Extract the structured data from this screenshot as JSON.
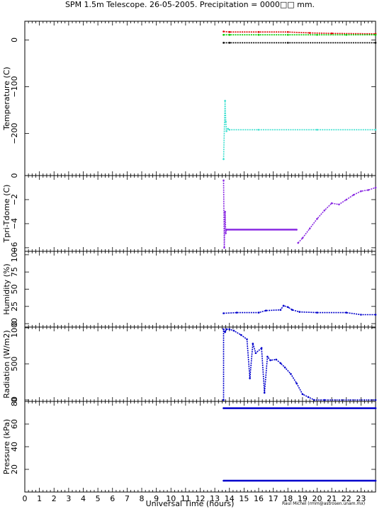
{
  "title": "SPM 1.5m Telescope. 26-05-2005. Precipitation = 0000□□ mm.",
  "xlabel": "Universal Time (hours)",
  "credit": "Raul Michel (rmm@astrosen.unam.mx)",
  "x_ticks": [
    "0",
    "1",
    "2",
    "3",
    "4",
    "5",
    "6",
    "7",
    "8",
    "9",
    "10",
    "11",
    "12",
    "13",
    "14",
    "15",
    "16",
    "17",
    "18",
    "19",
    "20",
    "21",
    "22",
    "23"
  ],
  "colors": {
    "red": "#dd0000",
    "green": "#00cc00",
    "black": "#000000",
    "gray": "#555555",
    "cyan": "#40e0d0",
    "purple": "#8a2be2",
    "blue": "#0000cc"
  },
  "chart_data": [
    {
      "type": "scatter",
      "ylabel": "Temperature (C)",
      "xlim": [
        0,
        24
      ],
      "ylim": [
        -290,
        40
      ],
      "y_ticks": [
        "0",
        "−100",
        "−200"
      ],
      "series": [
        {
          "color": "red",
          "segments": [
            {
              "x": [
                13.6,
                14.0,
                16.0,
                18.0,
                19.5,
                21.0,
                24.0
              ],
              "y": [
                18,
                17,
                17,
                17,
                15,
                14,
                13
              ]
            }
          ]
        },
        {
          "color": "green",
          "segments": [
            {
              "x": [
                13.6,
                14.0,
                16.0,
                18.0,
                20.0,
                22.0,
                24.0
              ],
              "y": [
                11,
                11,
                11,
                11,
                11,
                11,
                11
              ]
            }
          ]
        },
        {
          "color": "black",
          "segments": [
            {
              "x": [
                13.6,
                14.0,
                18.0,
                24.0
              ],
              "y": [
                -6,
                -6,
                -6,
                -6
              ]
            }
          ]
        },
        {
          "color": "cyan",
          "segments": [
            {
              "x": [
                13.6,
                13.7,
                13.75,
                13.8,
                13.9,
                14.0,
                16.0,
                20.0,
                24.0
              ],
              "y": [
                -255,
                -130,
                -175,
                -195,
                -190,
                -192,
                -192,
                -192,
                -192
              ]
            }
          ]
        }
      ]
    },
    {
      "type": "scatter",
      "ylabel": "Tpri-Tdome (C)",
      "xlim": [
        0,
        24
      ],
      "ylim": [
        -6.3,
        0
      ],
      "y_ticks": [
        "0",
        "−2",
        "−4",
        "−6"
      ],
      "series": [
        {
          "color": "purple",
          "segments": [
            {
              "x": [
                13.6,
                13.65,
                13.7,
                13.75,
                13.8
              ],
              "y": [
                -0.4,
                -6.0,
                -3.0,
                -4.8,
                -4.5
              ]
            },
            {
              "x": [
                13.8,
                18.6
              ],
              "y": [
                -4.5,
                -4.5
              ]
            },
            {
              "x": [
                18.7,
                19.0,
                19.5,
                20.0,
                20.5,
                21.0,
                21.5,
                22.0,
                22.5,
                23.0,
                23.5,
                24.0
              ],
              "y": [
                -5.6,
                -5.2,
                -4.4,
                -3.6,
                -2.9,
                -2.3,
                -2.4,
                -2.0,
                -1.6,
                -1.3,
                -1.2,
                -1.0
              ]
            }
          ]
        }
      ]
    },
    {
      "type": "scatter",
      "ylabel": "Humidity (%)",
      "xlim": [
        0,
        24
      ],
      "ylim": [
        -5,
        105
      ],
      "y_ticks": [
        "0",
        "25",
        "50",
        "75",
        "100"
      ],
      "series": [
        {
          "color": "blue",
          "segments": [
            {
              "x": [
                13.6,
                14.5,
                16.0,
                16.5,
                17.5,
                17.7,
                18.0,
                18.3,
                18.8,
                20.0,
                22.0,
                23.0,
                24.0
              ],
              "y": [
                15,
                16,
                16,
                19,
                20,
                26,
                24,
                20,
                17,
                16,
                16,
                13,
                13
              ]
            }
          ]
        }
      ]
    },
    {
      "type": "scatter",
      "ylabel": "Radiation (W/m2)",
      "xlim": [
        0,
        24
      ],
      "ylim": [
        -20,
        1010
      ],
      "y_ticks": [
        "0",
        "500",
        "1000"
      ],
      "series": [
        {
          "color": "blue",
          "segments": [
            {
              "x": [
                13.6,
                13.6,
                13.7,
                13.8,
                14.0,
                14.3,
                14.8,
                15.2,
                15.4,
                15.6,
                15.8,
                16.2,
                16.4,
                16.6,
                16.8,
                17.2,
                17.5,
                17.8,
                18.2,
                18.6,
                19.0,
                19.4,
                19.8,
                20.5,
                24.0
              ],
              "y": [
                0,
                980,
                940,
                980,
                980,
                960,
                900,
                840,
                300,
                780,
                650,
                720,
                100,
                600,
                550,
                560,
                510,
                450,
                360,
                230,
                80,
                40,
                0,
                0,
                0
              ]
            }
          ]
        }
      ]
    },
    {
      "type": "scatter",
      "ylabel": "Pressure (kPa)",
      "xlim": [
        0,
        24
      ],
      "ylim": [
        0,
        80
      ],
      "y_ticks": [
        "20",
        "40",
        "60",
        "80"
      ],
      "series": [
        {
          "color": "blue",
          "segments": [
            {
              "x": [
                13.6,
                24.0
              ],
              "y": [
                74,
                74
              ]
            }
          ]
        },
        {
          "color": "blue",
          "segments": [
            {
              "x": [
                13.6,
                24.0
              ],
              "y": [
                10,
                10
              ]
            }
          ]
        }
      ]
    }
  ]
}
